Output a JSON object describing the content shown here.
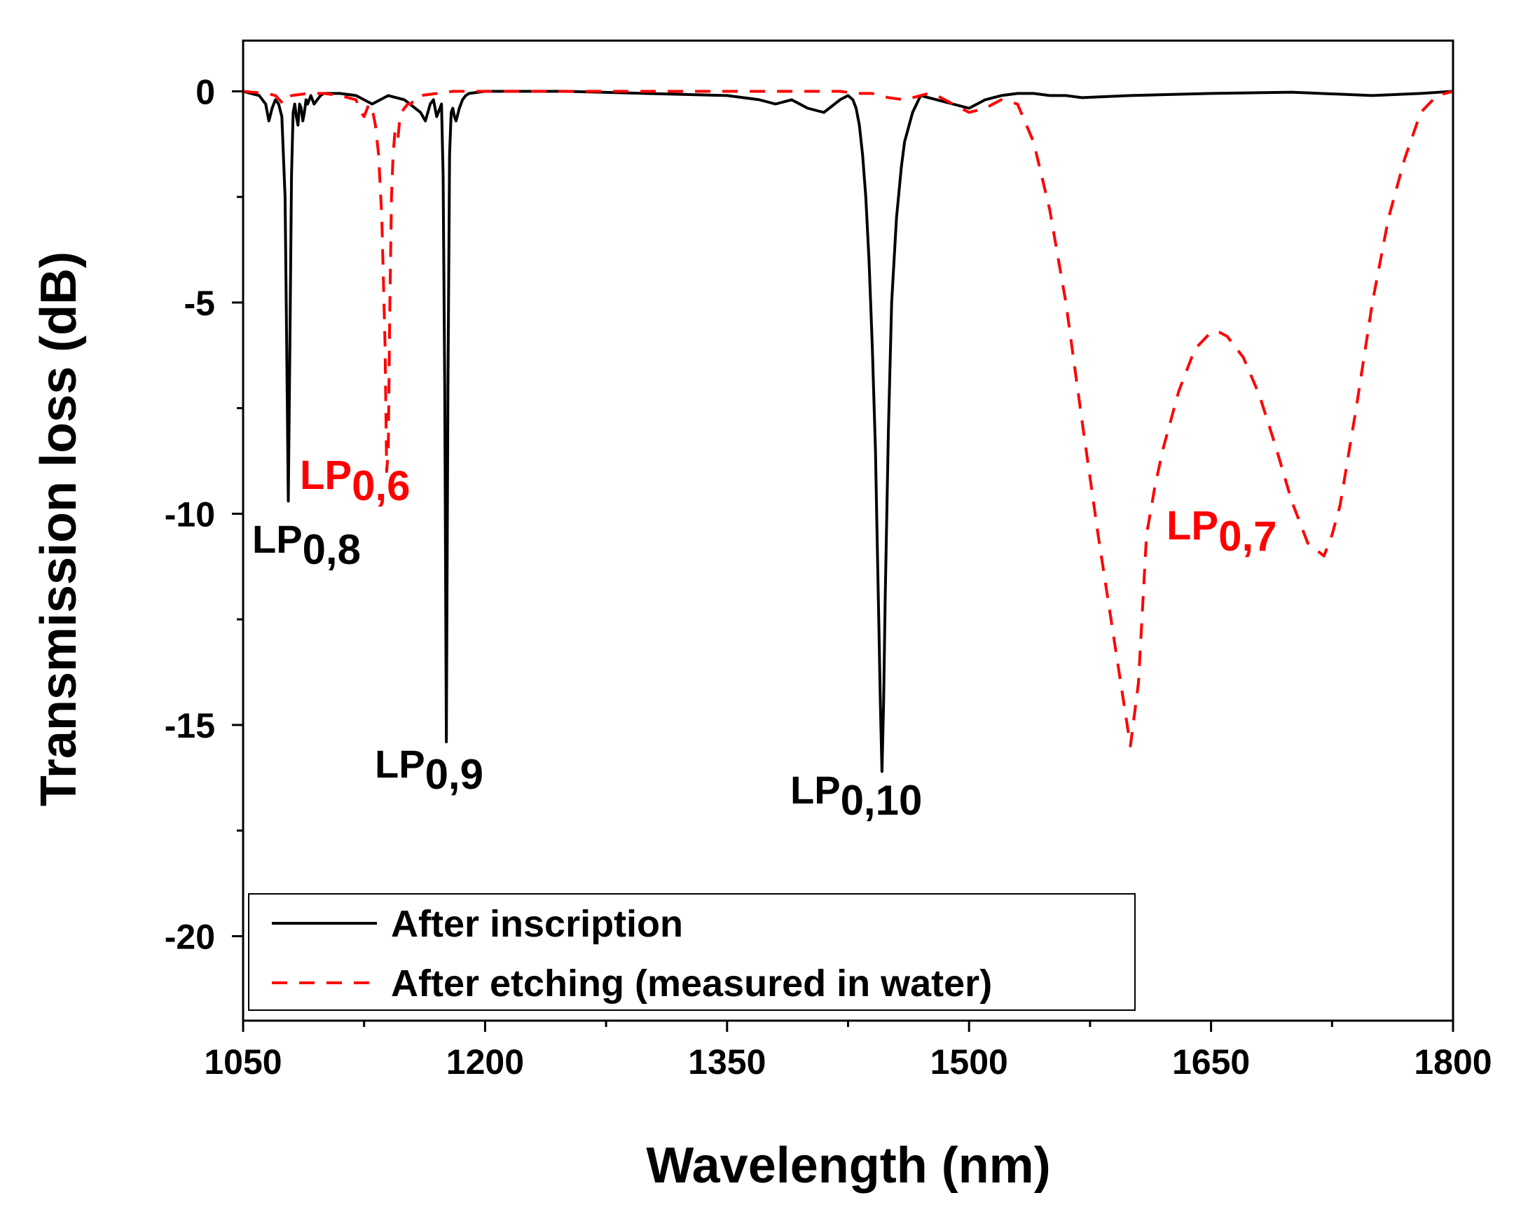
{
  "chart_data": {
    "type": "line",
    "title": "",
    "xlabel": "Wavelength (nm)",
    "ylabel": "Transmission loss (dB)",
    "xlim": [
      1050,
      1800
    ],
    "ylim": [
      -22,
      1.2
    ],
    "xticks": [
      1050,
      1200,
      1350,
      1500,
      1650,
      1800
    ],
    "xtick_labels": [
      "1050",
      "1200",
      "1350",
      "1500",
      "1650",
      "1800"
    ],
    "yticks": [
      0,
      -5,
      -10,
      -15,
      -20
    ],
    "ytick_labels": [
      "0",
      "-5",
      "-10",
      "-15",
      "-20"
    ],
    "grid": false,
    "legend_position": "bottom-left",
    "colors": {
      "after_inscription": "#000000",
      "after_etching": "#ff0000"
    },
    "series": [
      {
        "name": "After inscription",
        "style": "solid",
        "color": "#000000",
        "x": [
          1050,
          1060,
          1064,
          1066,
          1068,
          1070,
          1072,
          1074,
          1076,
          1077,
          1078,
          1079,
          1080,
          1081,
          1082,
          1083,
          1084,
          1085,
          1086,
          1087,
          1088,
          1089,
          1090,
          1092,
          1094,
          1096,
          1098,
          1100,
          1110,
          1120,
          1130,
          1140,
          1150,
          1160,
          1163,
          1166,
          1168,
          1170,
          1172,
          1173,
          1174,
          1175,
          1176,
          1177,
          1178,
          1179,
          1180,
          1181,
          1182,
          1184,
          1186,
          1188,
          1190,
          1200,
          1250,
          1300,
          1350,
          1370,
          1380,
          1390,
          1400,
          1410,
          1420,
          1425,
          1428,
          1430,
          1432,
          1434,
          1436,
          1438,
          1440,
          1442,
          1443,
          1444,
          1445,
          1446,
          1447,
          1448,
          1450,
          1452,
          1455,
          1458,
          1460,
          1465,
          1470,
          1480,
          1490,
          1500,
          1510,
          1520,
          1530,
          1540,
          1550,
          1560,
          1570,
          1600,
          1650,
          1700,
          1750,
          1780,
          1800
        ],
        "y": [
          0,
          -0.1,
          -0.3,
          -0.7,
          -0.4,
          -0.2,
          -0.3,
          -0.6,
          -2.5,
          -6,
          -9.7,
          -6,
          -2,
          -0.5,
          -0.3,
          -0.6,
          -0.8,
          -0.3,
          -0.4,
          -0.7,
          -0.5,
          -0.2,
          -0.3,
          -0.1,
          -0.3,
          -0.2,
          -0.1,
          -0.05,
          -0.05,
          -0.1,
          -0.3,
          -0.1,
          -0.2,
          -0.5,
          -0.7,
          -0.3,
          -0.2,
          -0.6,
          -0.4,
          -0.3,
          -2,
          -7,
          -15.4,
          -7,
          -1.5,
          -0.5,
          -0.4,
          -0.6,
          -0.7,
          -0.4,
          -0.2,
          -0.1,
          -0.05,
          0,
          0,
          -0.05,
          -0.1,
          -0.2,
          -0.3,
          -0.2,
          -0.4,
          -0.5,
          -0.2,
          -0.1,
          -0.2,
          -0.4,
          -0.8,
          -1.5,
          -2.5,
          -4,
          -6,
          -8.5,
          -10.5,
          -12.5,
          -14.5,
          -16.1,
          -14.5,
          -12,
          -8,
          -5,
          -3,
          -1.8,
          -1.2,
          -0.5,
          -0.1,
          -0.2,
          -0.3,
          -0.4,
          -0.2,
          -0.1,
          -0.05,
          -0.05,
          -0.1,
          -0.1,
          -0.15,
          -0.1,
          -0.05,
          -0.02,
          -0.1,
          -0.05,
          0
        ]
      },
      {
        "name": "After etching (measured in water)",
        "style": "dashed",
        "color": "#ff0000",
        "x": [
          1050,
          1065,
          1070,
          1075,
          1080,
          1090,
          1100,
          1110,
          1120,
          1123,
          1125,
          1128,
          1130,
          1132,
          1134,
          1136,
          1138,
          1139,
          1140,
          1141,
          1142,
          1143,
          1144,
          1145,
          1146,
          1147,
          1148,
          1150,
          1152,
          1154,
          1156,
          1158,
          1160,
          1170,
          1180,
          1190,
          1200,
          1250,
          1300,
          1350,
          1400,
          1420,
          1430,
          1440,
          1450,
          1460,
          1470,
          1475,
          1480,
          1490,
          1500,
          1510,
          1520,
          1530,
          1540,
          1550,
          1560,
          1570,
          1580,
          1590,
          1600,
          1605,
          1610,
          1615,
          1620,
          1630,
          1640,
          1650,
          1655,
          1660,
          1670,
          1680,
          1690,
          1700,
          1710,
          1720,
          1725,
          1730,
          1740,
          1750,
          1760,
          1770,
          1780,
          1790,
          1800
        ],
        "y": [
          0,
          -0.05,
          -0.1,
          -0.3,
          -0.1,
          -0.05,
          -0.05,
          -0.1,
          -0.2,
          -0.5,
          -0.6,
          -0.3,
          -0.4,
          -0.8,
          -1.5,
          -3,
          -6,
          -9,
          -8.5,
          -5,
          -2.5,
          -1.5,
          -1,
          -1.2,
          -1.1,
          -0.7,
          -0.5,
          -0.4,
          -0.3,
          -0.3,
          -0.2,
          -0.1,
          -0.1,
          -0.05,
          0,
          0,
          0,
          0,
          0,
          0,
          0,
          0,
          -0.05,
          -0.05,
          -0.15,
          -0.2,
          -0.1,
          -0.05,
          -0.1,
          -0.3,
          -0.5,
          -0.4,
          -0.2,
          -0.3,
          -1.2,
          -2.8,
          -5,
          -7.8,
          -10.5,
          -13,
          -15.5,
          -14,
          -10.5,
          -9.4,
          -8.5,
          -7.1,
          -6.1,
          -5.7,
          -5.7,
          -5.8,
          -6.3,
          -7.2,
          -8.4,
          -9.7,
          -10.7,
          -11,
          -10.5,
          -9.8,
          -7.5,
          -5,
          -3,
          -1.6,
          -0.5,
          -0.1,
          0
        ]
      }
    ],
    "annotations": [
      {
        "main": "LP",
        "sub": "0,8",
        "color": "#000000"
      },
      {
        "main": "LP",
        "sub": "0,6",
        "color": "#ff0000"
      },
      {
        "main": "LP",
        "sub": "0,9",
        "color": "#000000"
      },
      {
        "main": "LP",
        "sub": "0,10",
        "color": "#000000"
      },
      {
        "main": "LP",
        "sub": "0,7",
        "color": "#ff0000"
      }
    ]
  }
}
